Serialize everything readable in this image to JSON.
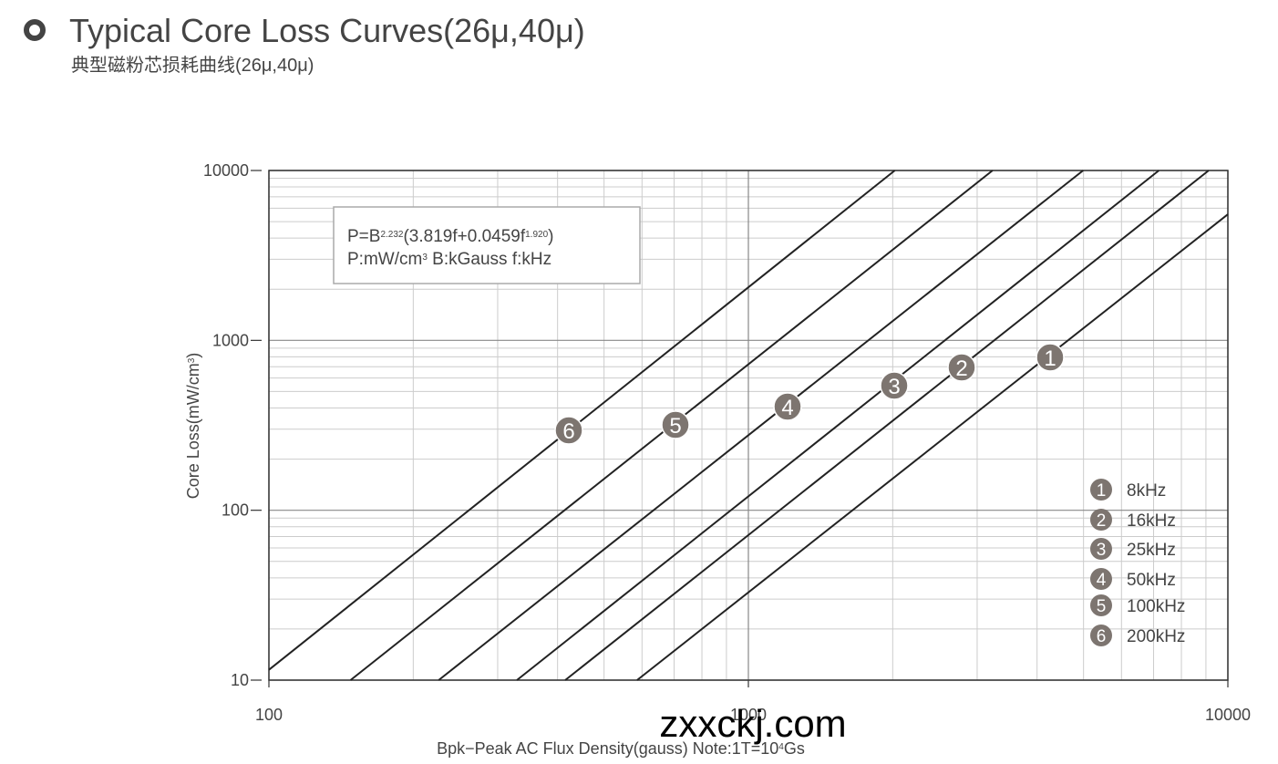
{
  "title": "Typical Core Loss Curves(26μ,40μ)",
  "subtitle": "典型磁粉芯损耗曲线(26μ,40μ)",
  "watermark": "zxxckj.com",
  "chart_data": {
    "type": "line",
    "x_label": [
      {
        "text": "Bpk−Peak AC Flux Density(gauss) Note:1T=10"
      },
      {
        "text": "4",
        "sup": true
      },
      {
        "text": "Gs"
      }
    ],
    "y_label": [
      {
        "text": "Core Loss(mW/cm"
      },
      {
        "text": "3",
        "sup": true
      },
      {
        "text": ")"
      }
    ],
    "formula": [
      [
        {
          "text": "P=B"
        },
        {
          "text": "2.232",
          "sup": true
        },
        {
          "text": "(3.819f+0.0459f"
        },
        {
          "text": "1.920",
          "sup": true
        },
        {
          "text": ")"
        }
      ],
      [
        {
          "text": "P:mW/cm"
        },
        {
          "text": "3",
          "sup": true
        },
        {
          "text": "  B:kGauss  f:kHz"
        }
      ]
    ],
    "xlog": true,
    "ylog": true,
    "grid": true,
    "minor_grid": true,
    "xlim": [
      100,
      10000
    ],
    "ylim": [
      10,
      10000
    ],
    "xticks": [
      100,
      1000,
      10000
    ],
    "yticks": [
      10,
      100,
      1000,
      10000
    ],
    "series": [
      {
        "name": "8kHz",
        "marker": "1",
        "color": "#222222",
        "x": [
          586,
          10000
        ],
        "values": [
          10,
          5520
        ]
      },
      {
        "name": "16kHz",
        "marker": "2",
        "color": "#222222",
        "x": [
          415,
          9120
        ],
        "values": [
          10,
          10000
        ]
      },
      {
        "name": "25kHz",
        "marker": "3",
        "color": "#222222",
        "x": [
          329,
          7180
        ],
        "values": [
          10,
          10000
        ]
      },
      {
        "name": "50kHz",
        "marker": "4",
        "color": "#222222",
        "x": [
          226,
          4990
        ],
        "values": [
          10,
          10000
        ]
      },
      {
        "name": "100kHz",
        "marker": "5",
        "color": "#222222",
        "x": [
          148,
          3230
        ],
        "values": [
          10,
          10000
        ]
      },
      {
        "name": "200kHz",
        "marker": "6",
        "color": "#222222",
        "x": [
          100,
          2020
        ],
        "values": [
          11.5,
          10000
        ]
      }
    ]
  }
}
